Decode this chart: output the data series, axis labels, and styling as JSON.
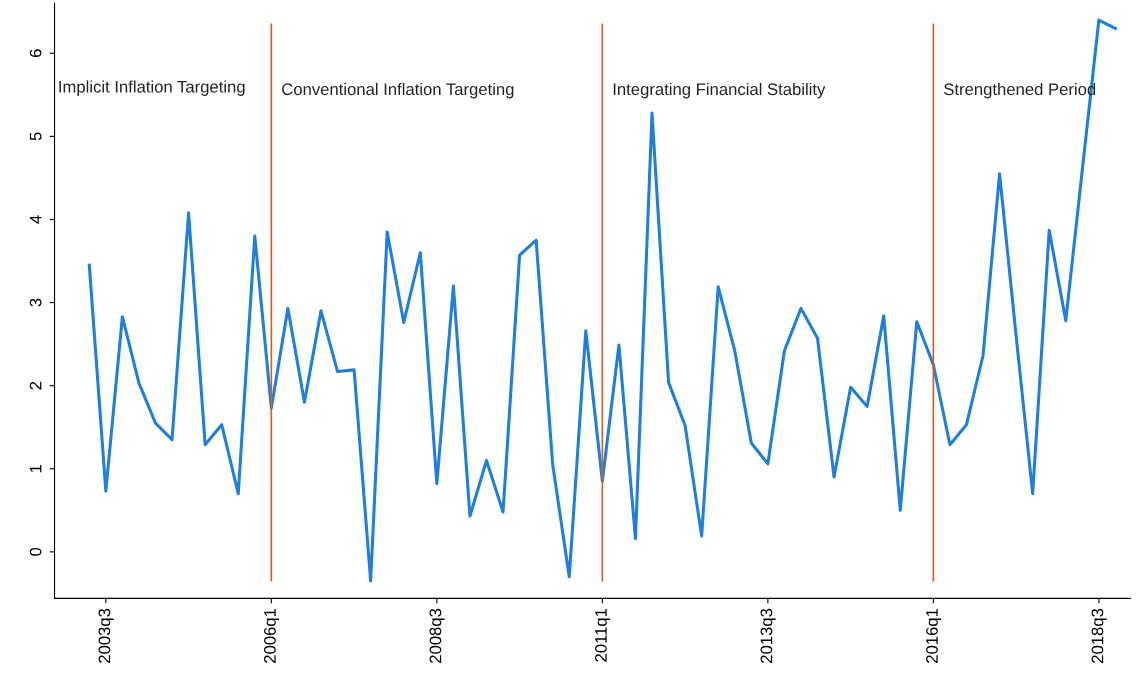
{
  "chart_data": {
    "type": "line",
    "categories": [
      null,
      "2003q3",
      null,
      null,
      null,
      null,
      null,
      null,
      null,
      null,
      null,
      "2006q1",
      null,
      null,
      null,
      null,
      null,
      null,
      null,
      null,
      null,
      "2008q3",
      null,
      null,
      null,
      null,
      null,
      null,
      null,
      null,
      null,
      "2011q1",
      null,
      null,
      null,
      null,
      null,
      null,
      null,
      null,
      null,
      "2013q3",
      null,
      null,
      null,
      null,
      null,
      null,
      null,
      null,
      null,
      "2016q1",
      null,
      null,
      null,
      null,
      null,
      null,
      null,
      null,
      null,
      "2018q3",
      null
    ],
    "series": [
      {
        "color": "#1f7fdb",
        "values": [
          3.45,
          0.73,
          2.83,
          2.03,
          1.55,
          1.35,
          4.08,
          1.29,
          1.53,
          0.7,
          3.8,
          1.73,
          2.93,
          1.8,
          2.9,
          2.17,
          2.19,
          -0.35,
          3.85,
          2.76,
          3.6,
          0.82,
          3.2,
          0.43,
          1.1,
          0.48,
          3.57,
          3.75,
          1.05,
          -0.3,
          2.66,
          0.85,
          2.49,
          0.16,
          5.28,
          2.04,
          1.52,
          0.19,
          3.19,
          2.42,
          1.31,
          1.06,
          2.42,
          2.93,
          2.57,
          0.9,
          1.98,
          1.75,
          2.84,
          0.5,
          2.77,
          2.25,
          1.29,
          1.53,
          2.36,
          4.55,
          2.6,
          0.7,
          3.87,
          2.78,
          4.6,
          6.4,
          6.3
        ]
      }
    ],
    "ylim": [
      -0.56,
      6.6
    ],
    "yticks": [
      0,
      1,
      2,
      3,
      4,
      5,
      6
    ],
    "grid": false,
    "marker": "none",
    "line_style": "solid",
    "ref_lines": [
      {
        "axis": "x",
        "value": "2006q1",
        "label": "Conventional Inflation Targeting",
        "color": "#d2602a"
      },
      {
        "axis": "x",
        "value": "2011q1",
        "label": "Integrating Financial Stability",
        "color": "#d2602a"
      },
      {
        "axis": "x",
        "value": "2016q1",
        "label": "Strengthened Period",
        "color": "#d2602a"
      }
    ],
    "annotations": [
      "Implicit Inflation Targeting"
    ]
  }
}
